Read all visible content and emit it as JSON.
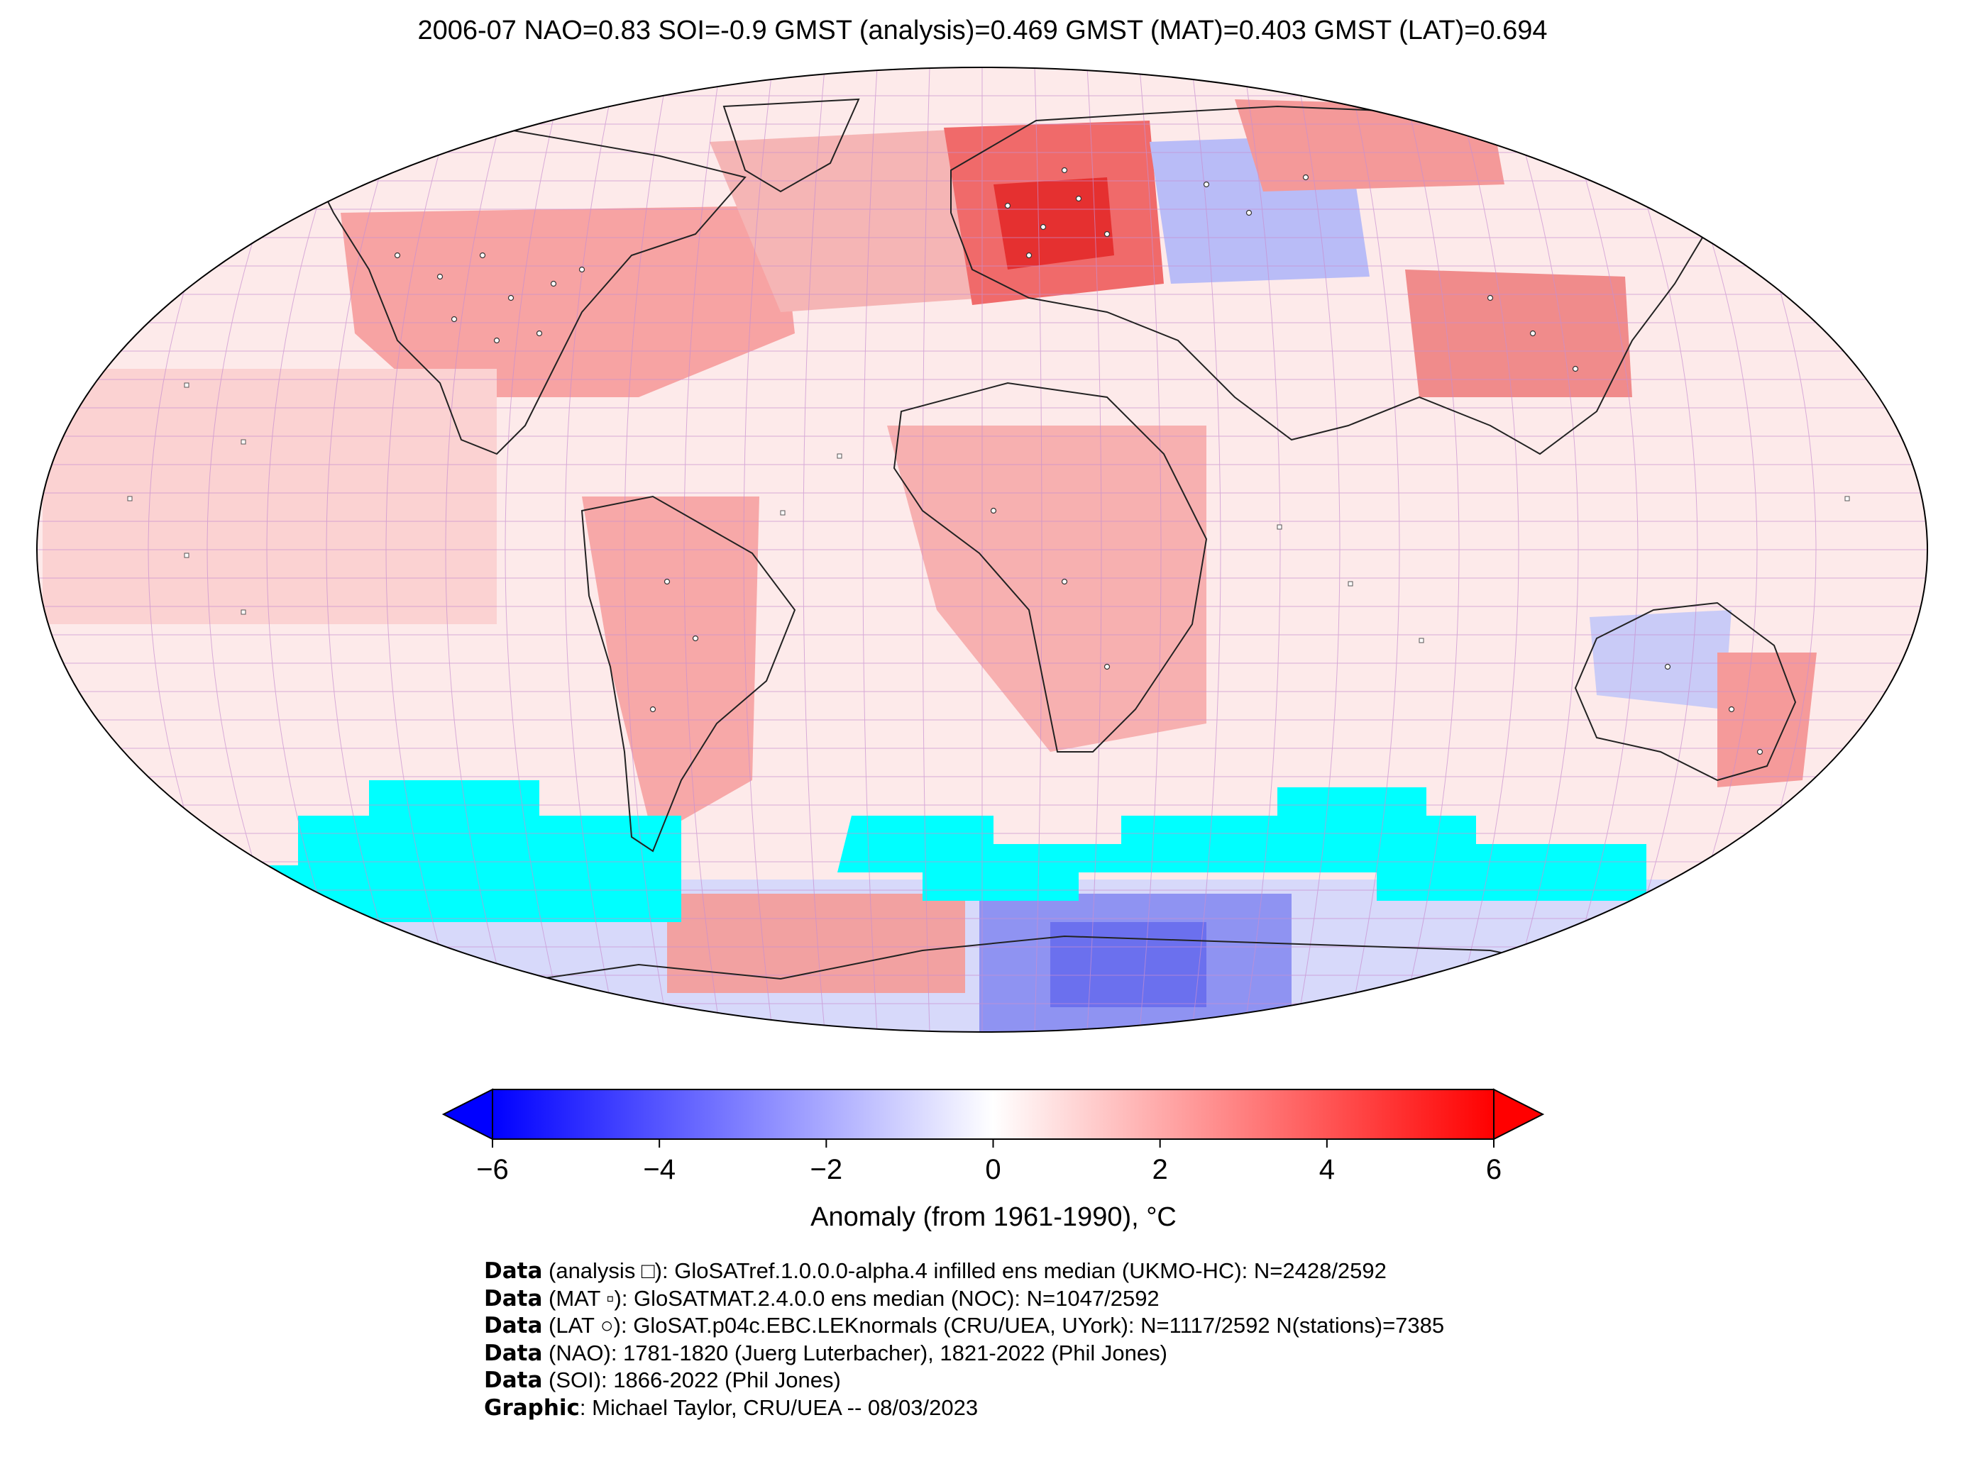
{
  "title": "2006-07 NAO=0.83 SOI=-0.9 GMST (analysis)=0.469 GMST (MAT)=0.403 GMST (LAT)=0.694",
  "map": {
    "projection": "Robinson",
    "gridlines": true,
    "colormap": "bwr",
    "missing_color": "#00ffff"
  },
  "colorbar": {
    "min": -6,
    "max": 6,
    "ticks": [
      "−6",
      "−4",
      "−2",
      "0",
      "2",
      "4",
      "6"
    ],
    "label": "Anomaly (from 1961-1990), °C",
    "extend": "both"
  },
  "credits": [
    {
      "key": "Data",
      "text": " (analysis □): GloSATref.1.0.0.0-alpha.4 infilled ens median (UKMO-HC): N=2428/2592"
    },
    {
      "key": "Data",
      "text": " (MAT ▫): GloSATMAT.2.4.0.0 ens median (NOC): N=1047/2592"
    },
    {
      "key": "Data",
      "text": " (LAT ○): GloSAT.p04c.EBC.LEKnormals (CRU/UEA, UYork): N=1117/2592 N(stations)=7385"
    },
    {
      "key": "Data",
      "text": " (NAO): 1781-1820 (Juerg Luterbacher), 1821-2022 (Phil Jones)"
    },
    {
      "key": "Data",
      "text": " (SOI): 1866-2022 (Phil Jones)"
    },
    {
      "key": "Graphic",
      "text": ": Michael Taylor, CRU/UEA -- 08/03/2023"
    }
  ]
}
